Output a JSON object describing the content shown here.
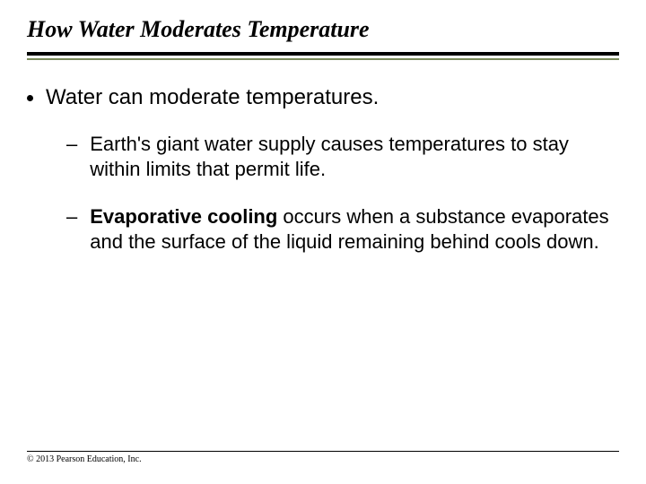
{
  "title": "How Water Moderates Temperature",
  "bullets": {
    "l1": "Water can moderate temperatures.",
    "l2a": "Earth's giant water supply causes temperatures to stay within limits that permit life.",
    "l2b_bold": "Evaporative cooling",
    "l2b_rest": " occurs when a substance evaporates and the surface of the liquid remaining behind cools down."
  },
  "copyright": "© 2013 Pearson Education, Inc.",
  "colors": {
    "rule_thin": "#7a8a5a",
    "rule_thick": "#000000",
    "text": "#000000",
    "background": "#ffffff"
  }
}
